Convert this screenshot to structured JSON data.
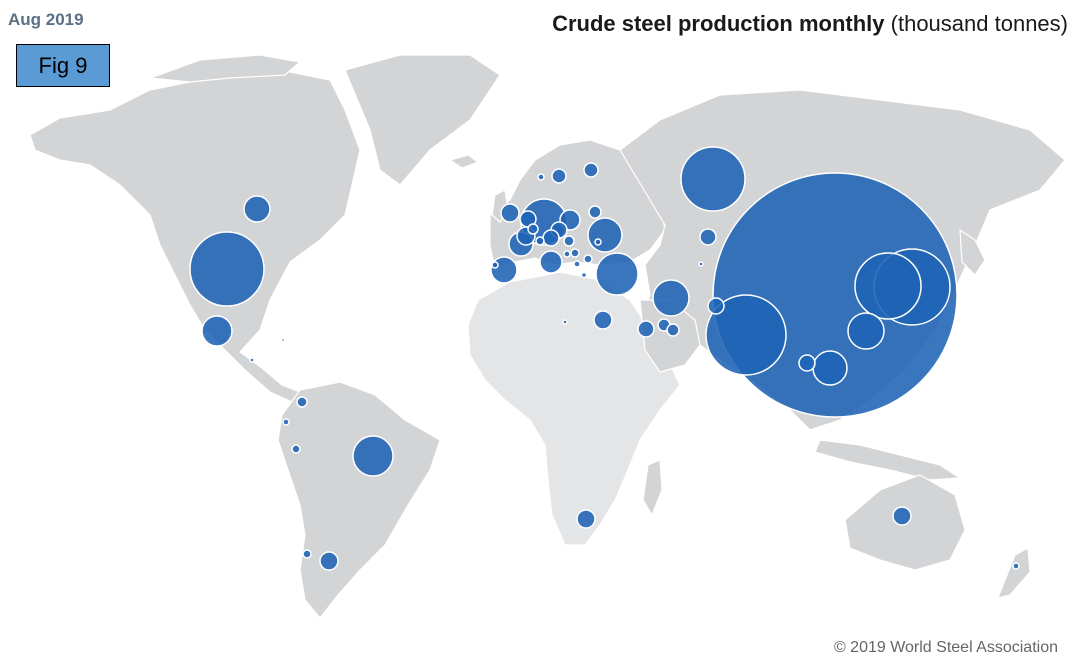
{
  "header": {
    "date": "Aug 2019",
    "title_bold": "Crude steel production monthly",
    "title_rest": " (thousand tonnes)"
  },
  "fig_label": "Fig 9",
  "copyright": "© 2019 World Steel Association",
  "colors": {
    "bubble": "#1f63b5",
    "land": "#d3d4d6",
    "fig_box": "#5b9bd5"
  },
  "map_data": {
    "type": "proportional-symbol-map",
    "metric": "Crude steel production monthly (thousand tonnes)",
    "period": "Aug 2019",
    "bubbles": [
      {
        "region": "China",
        "approx_thousand_tonnes": 87000
      },
      {
        "region": "India",
        "approx_thousand_tonnes": 9600
      },
      {
        "region": "Japan",
        "approx_thousand_tonnes": 8200
      },
      {
        "region": "United States",
        "approx_thousand_tonnes": 7400
      },
      {
        "region": "Russia",
        "approx_thousand_tonnes": 6000
      },
      {
        "region": "South Korea",
        "approx_thousand_tonnes": 6000
      },
      {
        "region": "Germany",
        "approx_thousand_tonnes": 3000
      },
      {
        "region": "Turkey",
        "approx_thousand_tonnes": 2700
      },
      {
        "region": "Brazil",
        "approx_thousand_tonnes": 2600
      },
      {
        "region": "Iran",
        "approx_thousand_tonnes": 2000
      },
      {
        "region": "Ukraine",
        "approx_thousand_tonnes": 1800
      },
      {
        "region": "Taiwan",
        "approx_thousand_tonnes": 1800
      },
      {
        "region": "Vietnam",
        "approx_thousand_tonnes": 1500
      },
      {
        "region": "Italy",
        "approx_thousand_tonnes": 1200
      },
      {
        "region": "Spain",
        "approx_thousand_tonnes": 1100
      },
      {
        "region": "France",
        "approx_thousand_tonnes": 1000
      },
      {
        "region": "Mexico",
        "approx_thousand_tonnes": 1000
      },
      {
        "region": "Canada",
        "approx_thousand_tonnes": 1000
      },
      {
        "region": "Poland",
        "approx_thousand_tonnes": 700
      },
      {
        "region": "Austria",
        "approx_thousand_tonnes": 600
      },
      {
        "region": "Belgium",
        "approx_thousand_tonnes": 600
      },
      {
        "region": "Netherlands",
        "approx_thousand_tonnes": 550
      },
      {
        "region": "Czechia",
        "approx_thousand_tonnes": 500
      },
      {
        "region": "Egypt",
        "approx_thousand_tonnes": 600
      },
      {
        "region": "South Africa",
        "approx_thousand_tonnes": 500
      },
      {
        "region": "Australia",
        "approx_thousand_tonnes": 500
      },
      {
        "region": "Saudi Arabia",
        "approx_thousand_tonnes": 450
      },
      {
        "region": "Argentina",
        "approx_thousand_tonnes": 450
      },
      {
        "region": "Kazakhstan",
        "approx_thousand_tonnes": 350
      },
      {
        "region": "Sweden",
        "approx_thousand_tonnes": 350
      },
      {
        "region": "Finland",
        "approx_thousand_tonnes": 300
      },
      {
        "region": "Belarus",
        "approx_thousand_tonnes": 200
      },
      {
        "region": "Slovakia",
        "approx_thousand_tonnes": 300
      },
      {
        "region": "United Arab Emirates",
        "approx_thousand_tonnes": 250
      },
      {
        "region": "Qatar",
        "approx_thousand_tonnes": 200
      },
      {
        "region": "Romania",
        "approx_thousand_tonnes": 200
      },
      {
        "region": "Hungary",
        "approx_thousand_tonnes": 150
      },
      {
        "region": "Thailand",
        "approx_thousand_tonnes": 350
      },
      {
        "region": "Pakistan",
        "approx_thousand_tonnes": 350
      },
      {
        "region": "United Kingdom",
        "approx_thousand_tonnes": 600
      },
      {
        "region": "Luxembourg",
        "approx_thousand_tonnes": 150
      },
      {
        "region": "Colombia",
        "approx_thousand_tonnes": 100
      },
      {
        "region": "Peru",
        "approx_thousand_tonnes": 100
      },
      {
        "region": "Chile",
        "approx_thousand_tonnes": 100
      },
      {
        "region": "Serbia",
        "approx_thousand_tonnes": 100
      },
      {
        "region": "Bulgaria",
        "approx_thousand_tonnes": 50
      },
      {
        "region": "Greece",
        "approx_thousand_tonnes": 100
      },
      {
        "region": "Slovenia",
        "approx_thousand_tonnes": 50
      },
      {
        "region": "Switzerland",
        "approx_thousand_tonnes": 100
      },
      {
        "region": "Norway",
        "approx_thousand_tonnes": 50
      },
      {
        "region": "Ecuador",
        "approx_thousand_tonnes": 50
      },
      {
        "region": "Libya",
        "approx_thousand_tonnes": 50
      },
      {
        "region": "Kazakh/central Asia small",
        "approx_thousand_tonnes": 50
      },
      {
        "region": "Croatia",
        "approx_thousand_tonnes": 20
      },
      {
        "region": "Bosnia",
        "approx_thousand_tonnes": 50
      },
      {
        "region": "Moldova",
        "approx_thousand_tonnes": 20
      },
      {
        "region": "Guatemala",
        "approx_thousand_tonnes": 20
      },
      {
        "region": "Cuba",
        "approx_thousand_tonnes": 20
      },
      {
        "region": "New Zealand",
        "approx_thousand_tonnes": 50
      },
      {
        "region": "Portugal",
        "approx_thousand_tonnes": 150
      }
    ]
  }
}
